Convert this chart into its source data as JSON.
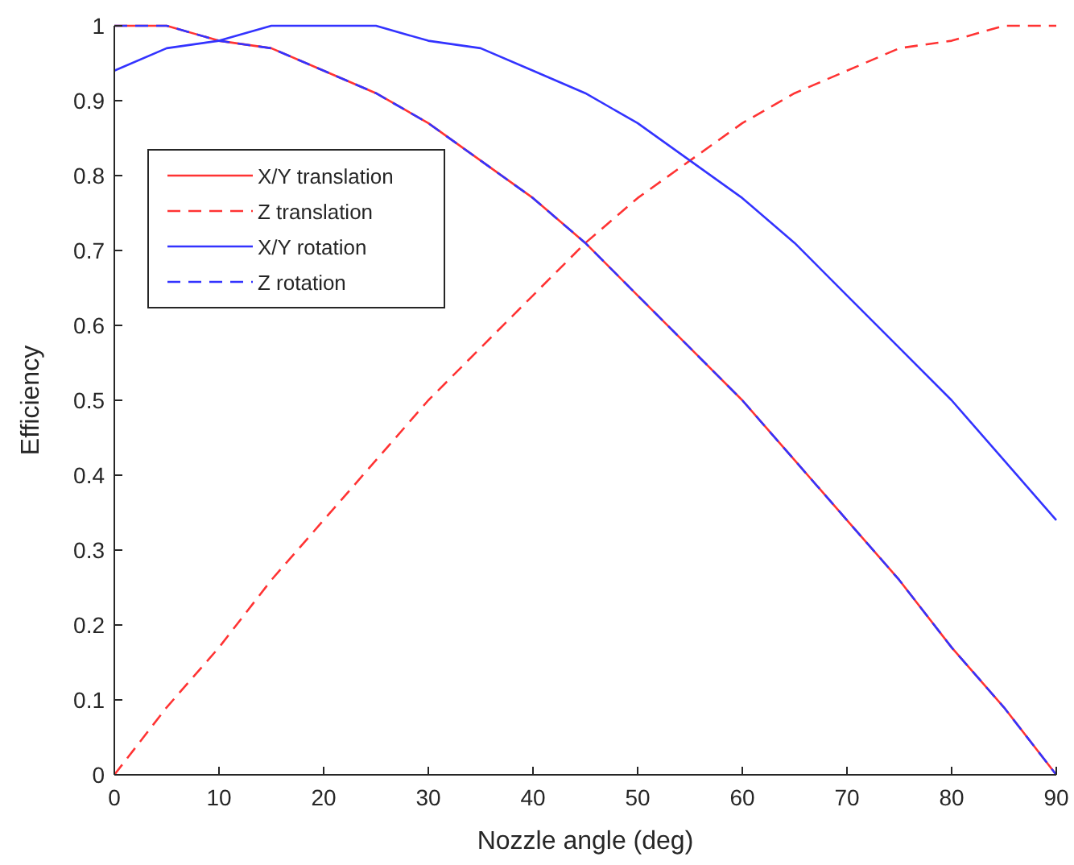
{
  "chart_data": {
    "type": "line",
    "xlabel": "Nozzle angle (deg)",
    "ylabel": "Efficiency",
    "x": [
      0,
      5,
      10,
      15,
      20,
      25,
      30,
      35,
      40,
      45,
      50,
      55,
      60,
      65,
      70,
      75,
      80,
      85,
      90
    ],
    "xlim": [
      0,
      90
    ],
    "xticks": [
      0,
      10,
      20,
      30,
      40,
      50,
      60,
      70,
      80,
      90
    ],
    "ylim": [
      0,
      1
    ],
    "yticks": [
      0,
      0.1,
      0.2,
      0.3,
      0.4,
      0.5,
      0.6,
      0.7,
      0.8,
      0.9,
      1
    ],
    "grid": false,
    "legend": "top left",
    "marker": "none",
    "series": [
      {
        "name": "X/Y translation",
        "color": "#ff3333",
        "line_style": "solid",
        "values": [
          1,
          1.0,
          0.98,
          0.97,
          0.94,
          0.91,
          0.87,
          0.82,
          0.77,
          0.71,
          0.64,
          0.57,
          0.5,
          0.42,
          0.34,
          0.26,
          0.17,
          0.09,
          0
        ]
      },
      {
        "name": "Z translation",
        "color": "#ff3333",
        "line_style": "dashed",
        "values": [
          0,
          0.09,
          0.17,
          0.26,
          0.34,
          0.42,
          0.5,
          0.57,
          0.64,
          0.71,
          0.77,
          0.82,
          0.87,
          0.91,
          0.94,
          0.97,
          0.98,
          1.0,
          1
        ]
      },
      {
        "name": "X/Y rotation",
        "color": "#3333ff",
        "line_style": "solid",
        "values": [
          0.94,
          0.97,
          0.98,
          1.0,
          1,
          1.0,
          0.98,
          0.97,
          0.94,
          0.91,
          0.87,
          0.82,
          0.77,
          0.71,
          0.64,
          0.57,
          0.5,
          0.42,
          0.34
        ]
      },
      {
        "name": "Z rotation",
        "color": "#3333ff",
        "line_style": "dashed",
        "values": [
          1,
          1.0,
          0.98,
          0.97,
          0.94,
          0.91,
          0.87,
          0.82,
          0.77,
          0.71,
          0.64,
          0.57,
          0.5,
          0.42,
          0.34,
          0.26,
          0.17,
          0.09,
          0
        ]
      }
    ]
  }
}
